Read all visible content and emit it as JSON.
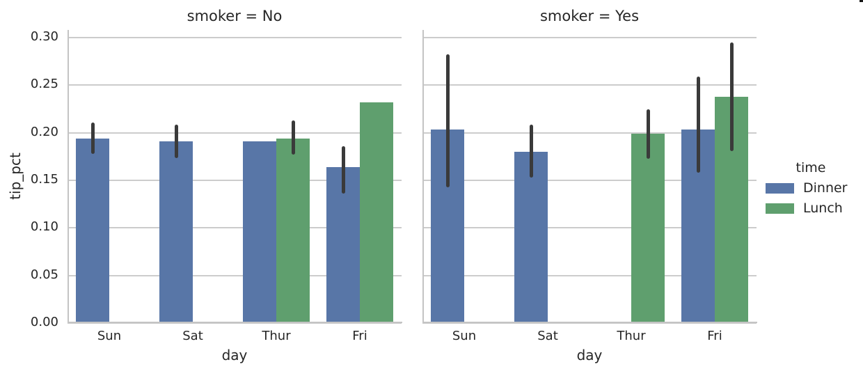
{
  "chart_data": {
    "type": "bar",
    "xlabel": "day",
    "ylabel": "tip_pct",
    "categories": [
      "Sun",
      "Sat",
      "Thur",
      "Fri"
    ],
    "hue_variable": "time",
    "hue_levels": [
      "Dinner",
      "Lunch"
    ],
    "facet_variable": "smoker",
    "yticks": [
      0,
      0.05,
      0.1,
      0.15,
      0.2,
      0.25,
      0.3
    ],
    "ylim": [
      0,
      0.3073
    ],
    "grid": true,
    "legend_position": "right-center",
    "colors": {
      "Dinner": "#5876a7",
      "Lunch": "#5f9f6e",
      "errorbar": "#3a3a3a",
      "grid": "#cccccc",
      "text": "#262626"
    },
    "facets": [
      {
        "title": "smoker = No",
        "bars": [
          {
            "category": "Sun",
            "hue": "Dinner",
            "value": 0.193,
            "ci": [
              0.177,
              0.21
            ]
          },
          {
            "category": "Sat",
            "hue": "Dinner",
            "value": 0.19,
            "ci": [
              0.173,
              0.208
            ]
          },
          {
            "category": "Thur",
            "hue": "Dinner",
            "value": 0.19,
            "ci": null
          },
          {
            "category": "Thur",
            "hue": "Lunch",
            "value": 0.193,
            "ci": [
              0.176,
              0.212
            ]
          },
          {
            "category": "Fri",
            "hue": "Dinner",
            "value": 0.163,
            "ci": [
              0.135,
              0.185
            ]
          },
          {
            "category": "Fri",
            "hue": "Lunch",
            "value": 0.231,
            "ci": null
          }
        ]
      },
      {
        "title": "smoker = Yes",
        "bars": [
          {
            "category": "Sun",
            "hue": "Dinner",
            "value": 0.203,
            "ci": [
              0.142,
              0.282
            ]
          },
          {
            "category": "Sat",
            "hue": "Dinner",
            "value": 0.179,
            "ci": [
              0.152,
              0.208
            ]
          },
          {
            "category": "Thur",
            "hue": "Lunch",
            "value": 0.198,
            "ci": [
              0.172,
              0.224
            ]
          },
          {
            "category": "Fri",
            "hue": "Dinner",
            "value": 0.203,
            "ci": [
              0.157,
              0.258
            ]
          },
          {
            "category": "Fri",
            "hue": "Lunch",
            "value": 0.237,
            "ci": [
              0.18,
              0.294
            ]
          }
        ]
      }
    ],
    "legend": {
      "title": "time",
      "entries": [
        {
          "label": "Dinner",
          "color": "#5876a7"
        },
        {
          "label": "Lunch",
          "color": "#5f9f6e"
        }
      ]
    }
  }
}
